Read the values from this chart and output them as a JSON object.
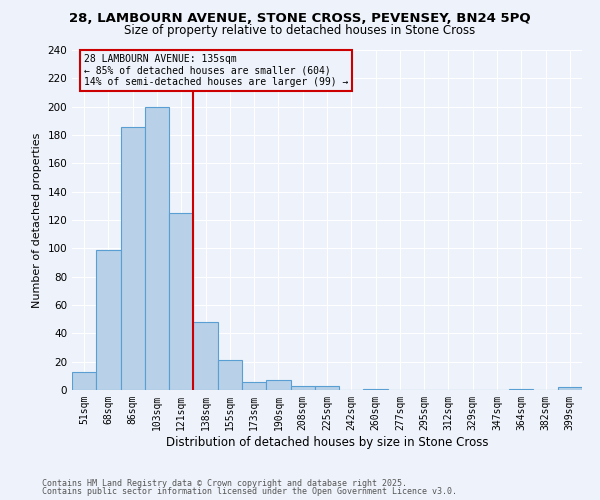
{
  "title_line1": "28, LAMBOURN AVENUE, STONE CROSS, PEVENSEY, BN24 5PQ",
  "title_line2": "Size of property relative to detached houses in Stone Cross",
  "xlabel": "Distribution of detached houses by size in Stone Cross",
  "ylabel": "Number of detached properties",
  "categories": [
    "51sqm",
    "68sqm",
    "86sqm",
    "103sqm",
    "121sqm",
    "138sqm",
    "155sqm",
    "173sqm",
    "190sqm",
    "208sqm",
    "225sqm",
    "242sqm",
    "260sqm",
    "277sqm",
    "295sqm",
    "312sqm",
    "329sqm",
    "347sqm",
    "364sqm",
    "382sqm",
    "399sqm"
  ],
  "values": [
    13,
    99,
    186,
    200,
    125,
    48,
    21,
    6,
    7,
    3,
    3,
    0,
    1,
    0,
    0,
    0,
    0,
    0,
    1,
    0,
    2
  ],
  "bar_color": "#b8d0e8",
  "bar_edge_color": "#5a9fd4",
  "bar_edge_width": 0.8,
  "vline_index": 5,
  "vline_color": "#cc0000",
  "annotation_text": "28 LAMBOURN AVENUE: 135sqm\n← 85% of detached houses are smaller (604)\n14% of semi-detached houses are larger (99) →",
  "annotation_box_color": "#cc0000",
  "ylim": [
    0,
    240
  ],
  "yticks": [
    0,
    20,
    40,
    60,
    80,
    100,
    120,
    140,
    160,
    180,
    200,
    220,
    240
  ],
  "footer_line1": "Contains HM Land Registry data © Crown copyright and database right 2025.",
  "footer_line2": "Contains public sector information licensed under the Open Government Licence v3.0.",
  "bg_color": "#eef2fa",
  "grid_color": "#ffffff"
}
